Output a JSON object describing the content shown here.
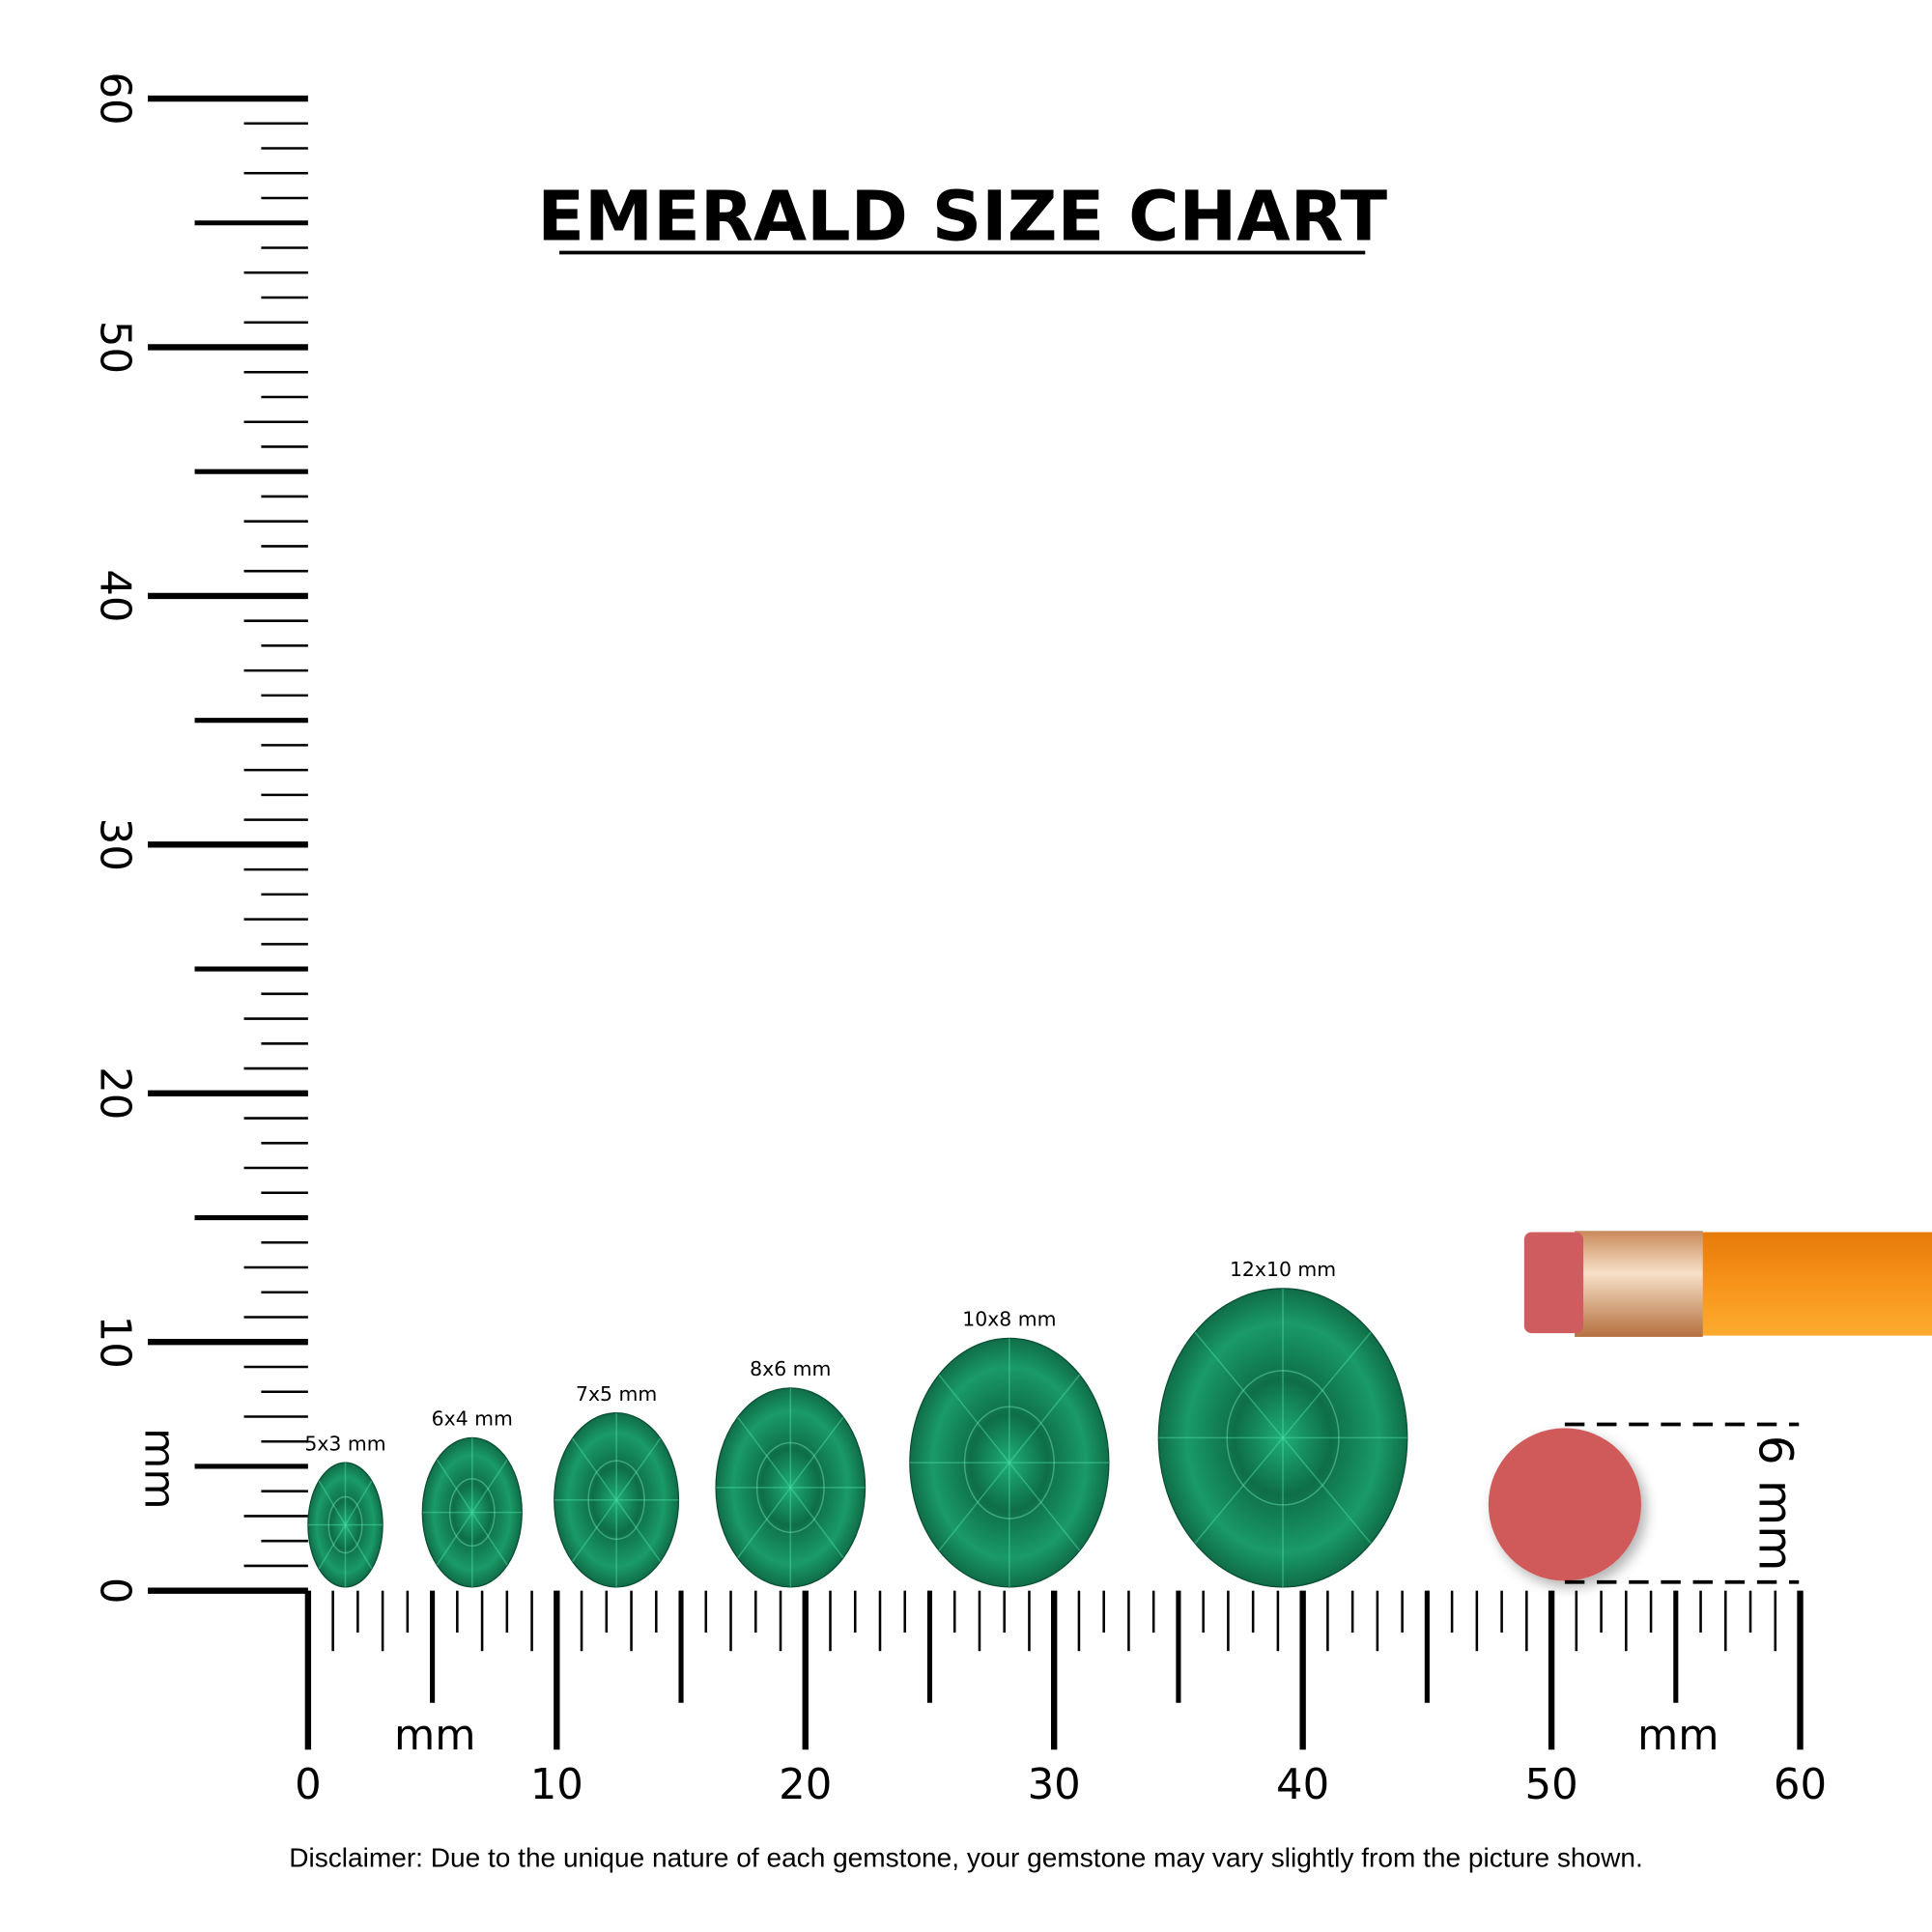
{
  "chart_data": {
    "type": "scatter",
    "title": "EMERALD SIZE CHART",
    "x_unit_label": "mm",
    "y_unit_label": "mm",
    "xlim": [
      0,
      60
    ],
    "ylim": [
      0,
      60
    ],
    "x_ticks": [
      "0",
      "10",
      "20",
      "30",
      "40",
      "50",
      "60"
    ],
    "y_ticks": [
      "0",
      "10",
      "20",
      "30",
      "40",
      "50",
      "60"
    ],
    "gems": [
      {
        "label": "5x3 mm",
        "length": 5,
        "width": 3,
        "x_center": 1.5
      },
      {
        "label": "6x4 mm",
        "length": 6,
        "width": 4,
        "x_center": 6.6
      },
      {
        "label": "7x5 mm",
        "length": 7,
        "width": 5,
        "x_center": 12.4
      },
      {
        "label": "8x6 mm",
        "length": 8,
        "width": 6,
        "x_center": 19.4
      },
      {
        "label": "10x8 mm",
        "length": 10,
        "width": 8,
        "x_center": 28.2
      },
      {
        "label": "12x10 mm",
        "length": 12,
        "width": 10,
        "x_center": 39.2
      }
    ],
    "reference": {
      "label": "6 mm",
      "object": "pencil eraser",
      "diameter": 6
    }
  },
  "disclaimer": "Disclaimer: Due to the unique nature of each gemstone, your gemstone may vary slightly from the picture shown.",
  "colors": {
    "gem_dark": "#0b5a3a",
    "gem_light": "#2fd69a",
    "eraser": "#d05a5a",
    "pencil": "#f7941d",
    "ferrule": "#d9a070"
  }
}
